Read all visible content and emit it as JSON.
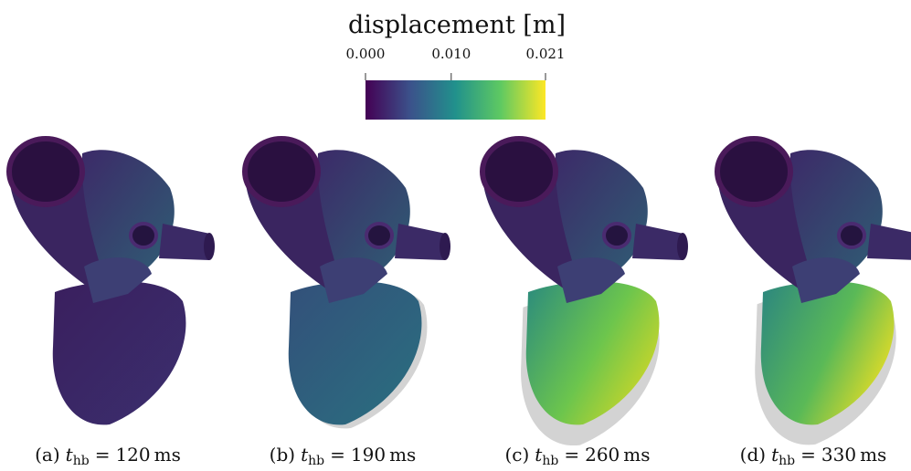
{
  "colorbar": {
    "title": "displacement [m]",
    "range": [
      0,
      0.021
    ],
    "ticks": [
      {
        "value": 0,
        "label": "0.000"
      },
      {
        "value": 0.01,
        "label": "0.010"
      },
      {
        "value": 0.021,
        "label": "0.021"
      }
    ]
  },
  "captions": [
    {
      "label": "(a)",
      "symbol": "t",
      "subscript": "hb",
      "relation": "=",
      "value": 120,
      "unit": "ms"
    },
    {
      "label": "(b)",
      "symbol": "t",
      "subscript": "hb",
      "relation": "=",
      "value": 190,
      "unit": "ms"
    },
    {
      "label": "(c)",
      "symbol": "t",
      "subscript": "hb",
      "relation": "=",
      "value": 260,
      "unit": "ms"
    },
    {
      "label": "(d)",
      "symbol": "t",
      "subscript": "hb",
      "relation": "=",
      "value": 330,
      "unit": "ms"
    }
  ]
}
